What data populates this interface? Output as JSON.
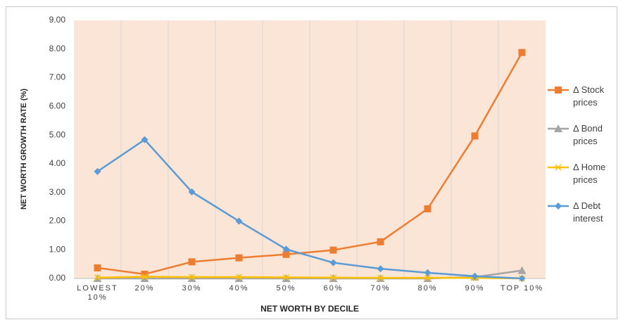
{
  "chart_data": {
    "type": "line",
    "y_label": "NET WORTH GROWTH RATE (%)",
    "x_label": "NET WORTH BY DECILE",
    "categories": [
      "LOWEST 10%",
      "20%",
      "30%",
      "40%",
      "50%",
      "60%",
      "70%",
      "80%",
      "90%",
      "TOP 10%"
    ],
    "series": [
      {
        "name": "Δ Stock prices",
        "color": "#ed7d31",
        "marker": "square",
        "values": [
          0.37,
          0.15,
          0.58,
          0.72,
          0.84,
          0.99,
          1.28,
          2.43,
          4.97,
          7.88
        ]
      },
      {
        "name": "Δ Bond prices",
        "color": "#a5a5a5",
        "marker": "triangle",
        "values": [
          0,
          0,
          0,
          0,
          0,
          0,
          0,
          0,
          0.05,
          0.28
        ]
      },
      {
        "name": "Δ Home prices",
        "color": "#ffc000",
        "marker": "x",
        "values": [
          0.03,
          0.06,
          0.05,
          0.05,
          0.04,
          0.03,
          0.02,
          0.02,
          0.02,
          0
        ]
      },
      {
        "name": "Δ Debt interest",
        "color": "#5b9bd5",
        "marker": "diamond",
        "values": [
          3.73,
          4.84,
          3.02,
          2.0,
          1.02,
          0.55,
          0.34,
          0.2,
          0.08,
          0
        ]
      }
    ],
    "ylim": [
      0,
      9
    ],
    "yticks": [
      {
        "value": 0,
        "label": "0.00"
      },
      {
        "value": 1,
        "label": "1.00"
      },
      {
        "value": 2,
        "label": "2.00"
      },
      {
        "value": 3,
        "label": "3.00"
      },
      {
        "value": 4,
        "label": "4.00"
      },
      {
        "value": 5,
        "label": "5.00"
      },
      {
        "value": 6,
        "label": "6.00"
      },
      {
        "value": 7,
        "label": "7.00"
      },
      {
        "value": 8,
        "label": "8.00"
      },
      {
        "value": 9,
        "label": "9.00"
      }
    ],
    "legend": "right",
    "plot_background": "#fbe5d6"
  }
}
